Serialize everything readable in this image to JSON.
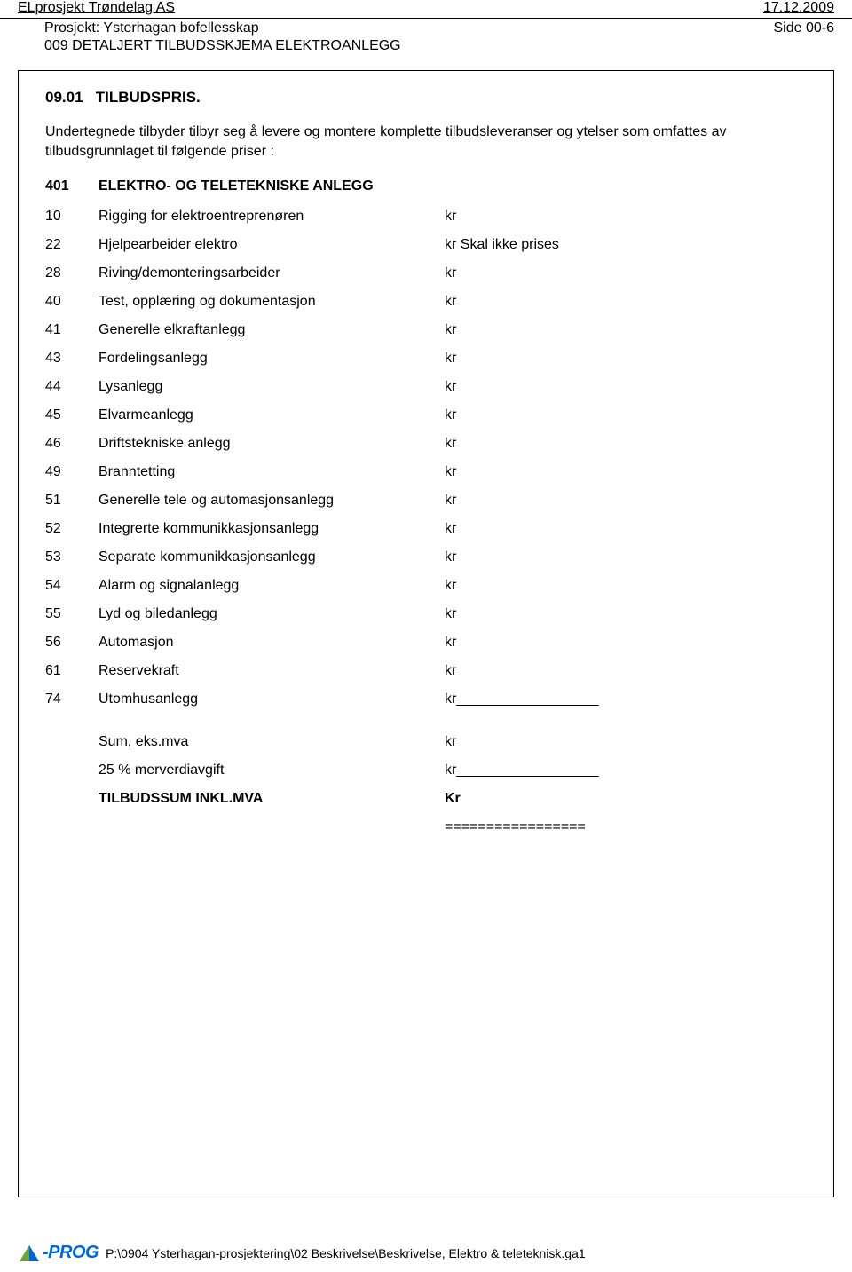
{
  "header": {
    "company": "ELprosjekt Trøndelag AS",
    "date": "17.12.2009",
    "project_label": "Prosjekt:",
    "project_name": "Ysterhagan bofellesskap",
    "page_label": "Side 00-6",
    "doc_title": "009 DETALJERT TILBUDSSKJEMA ELEKTROANLEGG"
  },
  "section": {
    "number": "09.01",
    "title": "TILBUDSPRIS."
  },
  "intro": "Undertegnede tilbyder tilbyr seg å levere og montere komplette tilbudsleveranser og ytelser som omfattes av tilbudsgrunnlaget til følgende priser :",
  "main_heading": {
    "num": "401",
    "text": "ELEKTRO- OG TELETEKNISKE ANLEGG"
  },
  "items": [
    {
      "num": "10",
      "desc": "Rigging for elektroentreprenøren",
      "val": "kr"
    },
    {
      "num": "22",
      "desc": "Hjelpearbeider elektro",
      "val": "kr Skal ikke prises"
    },
    {
      "num": "28",
      "desc": "Riving/demonteringsarbeider",
      "val": "kr"
    },
    {
      "num": "40",
      "desc": "Test, opplæring og dokumentasjon",
      "val": "kr"
    },
    {
      "num": "41",
      "desc": "Generelle elkraftanlegg",
      "val": "kr"
    },
    {
      "num": "43",
      "desc": "Fordelingsanlegg",
      "val": "kr"
    },
    {
      "num": "44",
      "desc": "Lysanlegg",
      "val": "kr"
    },
    {
      "num": "45",
      "desc": "Elvarmeanlegg",
      "val": "kr"
    },
    {
      "num": "46",
      "desc": "Driftstekniske anlegg",
      "val": "kr"
    },
    {
      "num": "49",
      "desc": "Branntetting",
      "val": "kr"
    },
    {
      "num": "51",
      "desc": "Generelle tele og automasjonsanlegg",
      "val": "kr"
    },
    {
      "num": "52",
      "desc": "Integrerte kommunikkasjonsanlegg",
      "val": "kr"
    },
    {
      "num": "53",
      "desc": "Separate kommunikkasjonsanlegg",
      "val": "kr"
    },
    {
      "num": "54",
      "desc": "Alarm og signalanlegg",
      "val": "kr"
    },
    {
      "num": "55",
      "desc": "Lyd og biledanlegg",
      "val": "kr"
    },
    {
      "num": "56",
      "desc": "Automasjon",
      "val": "kr"
    },
    {
      "num": "61",
      "desc": "Reservekraft",
      "val": "kr"
    },
    {
      "num": "74",
      "desc": "Utomhusanlegg",
      "val": "kr__________________"
    }
  ],
  "summary": [
    {
      "desc": "Sum, eks.mva",
      "val": "kr",
      "bold": false
    },
    {
      "desc": "25 % merverdiavgift",
      "val": "kr__________________",
      "bold": false
    },
    {
      "desc": "TILBUDSSUM INKL.MVA",
      "val": "Kr",
      "bold": true
    }
  ],
  "equals": "=================",
  "footer": {
    "logo_text": "-PROG",
    "path": "P:\\0904 Ysterhagan-prosjektering\\02 Beskrivelse\\Beskrivelse, Elektro & teleteknisk.ga1"
  },
  "colors": {
    "text": "#000000",
    "logo_blue": "#0066cc",
    "logo_green": "#6FA23F",
    "bg": "#ffffff"
  }
}
